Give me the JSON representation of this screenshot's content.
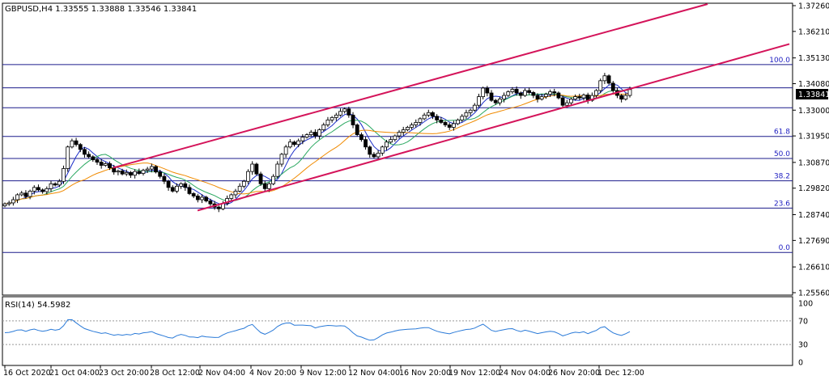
{
  "chart_info": {
    "symbol_label": "GBPUSD,H4",
    "ohlc": "1.33555 1.33888 1.33546 1.33841",
    "current_price": "1.33841"
  },
  "rsi_info": {
    "label": "RSI(14) 54.5982",
    "levels": [
      "100",
      "70",
      "30",
      "0"
    ]
  },
  "chart_data": {
    "type": "candlestick",
    "y_ticks": [
      "1.37260",
      "1.36210",
      "1.35130",
      "1.34080",
      "1.33000",
      "1.31950",
      "1.30870",
      "1.29820",
      "1.28740",
      "1.27690",
      "1.26610",
      "1.25560"
    ],
    "y_range": [
      1.2556,
      1.3726
    ],
    "x_ticks": [
      "16 Oct 2020",
      "21 Oct 04:00",
      "23 Oct 20:00",
      "28 Oct 12:00",
      "2 Nov 04:00",
      "4 Nov 20:00",
      "9 Nov 12:00",
      "12 Nov 04:00",
      "16 Nov 20:00",
      "19 Nov 12:00",
      "24 Nov 04:00",
      "26 Nov 20:00",
      "1 Dec 12:00"
    ],
    "fibonacci": [
      {
        "label": "100.0",
        "price": 1.3486
      },
      {
        "label": "61.8",
        "price": 1.3193
      },
      {
        "label": "50.0",
        "price": 1.3103
      },
      {
        "label": "38.2",
        "price": 1.3012
      },
      {
        "label": "23.6",
        "price": 1.2901
      },
      {
        "label": "0.0",
        "price": 1.272
      }
    ],
    "extra_lines": [
      1.3391,
      1.331
    ],
    "trend_channel": {
      "lower": {
        "x1_idx": 0.247,
        "y1": 1.2891,
        "x2_idx": 0.955,
        "y2": 1.355
      },
      "upper": {
        "x1_idx": 0.14,
        "y1": 1.3065,
        "x2_idx": 0.87,
        "y2": 1.3726
      }
    },
    "series_closes": [
      1.2918,
      1.2922,
      1.2935,
      1.2955,
      1.2962,
      1.2948,
      1.297,
      1.2985,
      1.2975,
      1.2968,
      1.298,
      1.3,
      1.2995,
      1.301,
      1.3062,
      1.315,
      1.3175,
      1.316,
      1.314,
      1.312,
      1.311,
      1.3098,
      1.3088,
      1.3075,
      1.3082,
      1.3065,
      1.3048,
      1.3052,
      1.304,
      1.3046,
      1.3035,
      1.305,
      1.3042,
      1.3055,
      1.306,
      1.307,
      1.3048,
      1.303,
      1.301,
      1.2985,
      1.297,
      1.299,
      1.3,
      1.2985,
      1.296,
      1.295,
      1.2935,
      1.2945,
      1.293,
      1.2918,
      1.2905,
      1.2898,
      1.292,
      1.294,
      1.2955,
      1.297,
      1.299,
      1.301,
      1.305,
      1.308,
      1.304,
      1.3,
      1.298,
      1.3,
      1.303,
      1.308,
      1.312,
      1.315,
      1.317,
      1.316,
      1.3175,
      1.319,
      1.32,
      1.321,
      1.3195,
      1.322,
      1.324,
      1.326,
      1.327,
      1.328,
      1.3295,
      1.3305,
      1.328,
      1.324,
      1.32,
      1.318,
      1.315,
      1.312,
      1.311,
      1.3125,
      1.315,
      1.317,
      1.318,
      1.3195,
      1.321,
      1.322,
      1.323,
      1.324,
      1.325,
      1.3265,
      1.328,
      1.329,
      1.3275,
      1.326,
      1.325,
      1.324,
      1.323,
      1.3245,
      1.326,
      1.3275,
      1.329,
      1.33,
      1.332,
      1.3355,
      1.339,
      1.337,
      1.334,
      1.333,
      1.3345,
      1.336,
      1.3375,
      1.3385,
      1.337,
      1.336,
      1.338,
      1.3372,
      1.336,
      1.3345,
      1.3355,
      1.3365,
      1.3375,
      1.337,
      1.335,
      1.332,
      1.333,
      1.3345,
      1.3355,
      1.335,
      1.3362,
      1.334,
      1.336,
      1.338,
      1.342,
      1.344,
      1.341,
      1.338,
      1.336,
      1.3345,
      1.336,
      1.3384
    ]
  }
}
